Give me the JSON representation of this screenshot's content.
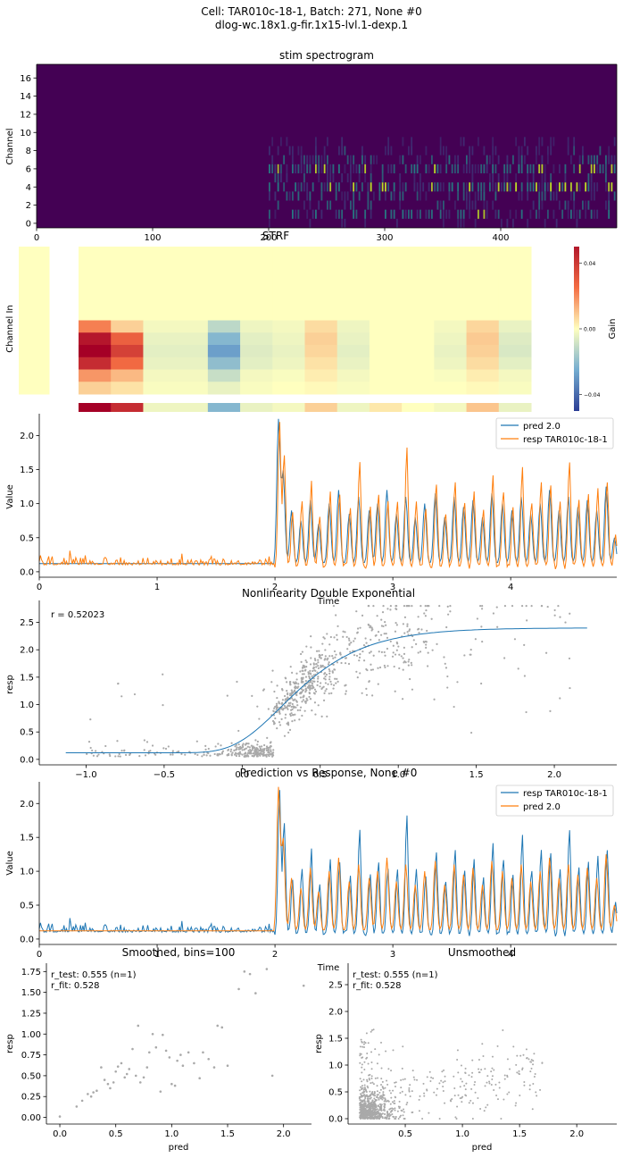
{
  "figure": {
    "suptitle_line1": "Cell: TAR010c-18-1, Batch: 271, None #0",
    "suptitle_line2": "dlog-wc.18x1.g-fir.1x15-lvl.1-dexp.1"
  },
  "colors": {
    "blue": "#1f77b4",
    "orange": "#ff7f0e",
    "scatter_gray": "#a9a9a9",
    "viridis_dark": "#440154",
    "viridis_mid": "#21918c",
    "viridis_light": "#bddf26",
    "colorbar_pos": "#b2182b",
    "colorbar_neg": "#2c3e95"
  },
  "chart_data": [
    {
      "id": "stim",
      "type": "heatmap",
      "title": "stim spectrogram",
      "ylabel": "Channel",
      "xlabel": "",
      "xlim": [
        0,
        500
      ],
      "ylim": [
        -0.5,
        17.5
      ],
      "xticks": [
        0,
        100,
        200,
        300,
        400
      ],
      "yticks": [
        0,
        2,
        4,
        6,
        8,
        10,
        12,
        14,
        16
      ],
      "stim_onset": 200,
      "active_channels": [
        0,
        1,
        2,
        3,
        4,
        5,
        6,
        7,
        8,
        9
      ]
    },
    {
      "id": "strf",
      "type": "heatmap",
      "title": "STRF",
      "ylabel": "Channel In",
      "colorbar_label": "Gain",
      "colorbar_ticks": [
        0.04,
        0.0,
        -0.04
      ],
      "colorbar_tick_labels": [
        "0.04",
        "0.00",
        "−0.04"
      ],
      "vlim": [
        -0.05,
        0.05
      ],
      "main_rows": [
        [
          0,
          0,
          0.022,
          0.008,
          -0.002,
          -0.002,
          -0.012,
          -0.003,
          -0.002,
          0.006,
          -0.003,
          0,
          0,
          -0.002,
          0.007,
          -0.004
        ],
        [
          0,
          0,
          0.045,
          0.028,
          -0.004,
          -0.004,
          -0.022,
          -0.005,
          -0.003,
          0.008,
          -0.004,
          0,
          0,
          -0.003,
          0.009,
          -0.006
        ],
        [
          0,
          0,
          0.052,
          0.035,
          -0.005,
          -0.005,
          -0.028,
          -0.006,
          -0.004,
          0.007,
          -0.005,
          0,
          0,
          -0.004,
          0.008,
          -0.007
        ],
        [
          0,
          0,
          0.04,
          0.026,
          -0.004,
          -0.004,
          -0.02,
          -0.005,
          -0.003,
          0.005,
          -0.004,
          0,
          0,
          -0.003,
          0.006,
          -0.005
        ],
        [
          0,
          0,
          0.018,
          0.012,
          -0.002,
          -0.002,
          -0.01,
          -0.002,
          -0.001,
          0.003,
          -0.002,
          0,
          0,
          -0.001,
          0.003,
          -0.002
        ],
        [
          0,
          0,
          0.008,
          0.005,
          -0.001,
          -0.001,
          -0.004,
          -0.001,
          0,
          0.001,
          -0.001,
          0,
          0,
          0,
          0.001,
          -0.001
        ]
      ],
      "bottom_row": [
        0,
        0,
        0.05,
        0.04,
        -0.003,
        -0.003,
        -0.022,
        -0.004,
        -0.002,
        0.008,
        -0.003,
        0.004,
        0,
        -0.002,
        0.01,
        -0.004
      ]
    },
    {
      "id": "timeseries1",
      "type": "line",
      "xlabel": "Time",
      "ylabel": "Value",
      "xlim": [
        0,
        4.9
      ],
      "ylim": [
        -0.08,
        2.32
      ],
      "xticks": [
        0,
        1,
        2,
        3,
        4
      ],
      "yticks": [
        0.0,
        0.5,
        1.0,
        1.5,
        2.0
      ],
      "legend_position": "upper right",
      "legend": [
        "pred 2.0",
        "resp TAR010c-18-1"
      ],
      "series": [
        {
          "name": "pred 2.0",
          "color": "#1f77b4",
          "baseline": 0.12,
          "peak": 2.22,
          "onset": 2.0
        },
        {
          "name": "resp TAR010c-18-1",
          "color": "#ff7f0e",
          "baseline": 0.12,
          "peak": 2.15,
          "onset": 2.0
        }
      ],
      "events": [
        {
          "t": 2.03,
          "pred": 2.22,
          "resp": 2.15
        },
        {
          "t": 2.07,
          "pred": 1.45,
          "resp": 1.7
        },
        {
          "t": 2.14,
          "pred": 0.9,
          "resp": 0.85
        },
        {
          "t": 2.22,
          "pred": 0.75,
          "resp": 1.0
        },
        {
          "t": 2.3,
          "pred": 1.05,
          "resp": 1.28
        },
        {
          "t": 2.37,
          "pred": 0.7,
          "resp": 0.8
        },
        {
          "t": 2.46,
          "pred": 1.0,
          "resp": 1.15
        },
        {
          "t": 2.54,
          "pred": 1.2,
          "resp": 1.12
        },
        {
          "t": 2.63,
          "pred": 0.85,
          "resp": 0.9
        },
        {
          "t": 2.71,
          "pred": 1.1,
          "resp": 1.55
        },
        {
          "t": 2.8,
          "pred": 0.9,
          "resp": 0.95
        },
        {
          "t": 2.87,
          "pred": 1.0,
          "resp": 1.12
        },
        {
          "t": 2.95,
          "pred": 1.2,
          "resp": 1.02
        },
        {
          "t": 3.03,
          "pred": 0.85,
          "resp": 1.0
        },
        {
          "t": 3.11,
          "pred": 1.1,
          "resp": 1.8
        },
        {
          "t": 3.19,
          "pred": 0.8,
          "resp": 1.0
        },
        {
          "t": 3.27,
          "pred": 1.0,
          "resp": 0.95
        },
        {
          "t": 3.36,
          "pred": 1.15,
          "resp": 1.28
        },
        {
          "t": 3.44,
          "pred": 0.8,
          "resp": 0.85
        },
        {
          "t": 3.52,
          "pred": 1.1,
          "resp": 1.3
        },
        {
          "t": 3.6,
          "pred": 0.95,
          "resp": 1.0
        },
        {
          "t": 3.68,
          "pred": 1.05,
          "resp": 1.15
        },
        {
          "t": 3.76,
          "pred": 0.8,
          "resp": 0.9
        },
        {
          "t": 3.84,
          "pred": 1.15,
          "resp": 1.4
        },
        {
          "t": 3.93,
          "pred": 1.0,
          "resp": 1.2
        },
        {
          "t": 4.01,
          "pred": 0.9,
          "resp": 0.95
        },
        {
          "t": 4.09,
          "pred": 1.1,
          "resp": 1.5
        },
        {
          "t": 4.17,
          "pred": 0.85,
          "resp": 1.0
        },
        {
          "t": 4.25,
          "pred": 1.0,
          "resp": 1.3
        },
        {
          "t": 4.33,
          "pred": 1.2,
          "resp": 1.25
        },
        {
          "t": 4.41,
          "pred": 0.9,
          "resp": 1.0
        },
        {
          "t": 4.49,
          "pred": 1.1,
          "resp": 1.6
        },
        {
          "t": 4.57,
          "pred": 0.95,
          "resp": 1.05
        },
        {
          "t": 4.65,
          "pred": 1.05,
          "resp": 1.1
        },
        {
          "t": 4.73,
          "pred": 0.9,
          "resp": 1.2
        },
        {
          "t": 4.81,
          "pred": 1.25,
          "resp": 1.3
        },
        {
          "t": 4.88,
          "pred": 0.5,
          "resp": 0.5
        }
      ]
    },
    {
      "id": "nonlinearity",
      "type": "scatter",
      "title": "Nonlinearity Double Exponential",
      "ylabel": "resp",
      "xlabel": "",
      "annotation": "r = 0.52023",
      "xlim": [
        -1.3,
        2.4
      ],
      "ylim": [
        -0.1,
        2.9
      ],
      "xticks": [
        -1.0,
        -0.5,
        0.0,
        0.5,
        1.0,
        1.5,
        2.0
      ],
      "yticks": [
        0.0,
        0.5,
        1.0,
        1.5,
        2.0,
        2.5
      ],
      "curve": {
        "base": 0.12,
        "amplitude": 2.28,
        "kappa": 1.2,
        "shift": 0.25,
        "x": [
          -1.13,
          2.23
        ]
      },
      "scatter_color": "#a9a9a9",
      "line_color": "#1f77b4"
    },
    {
      "id": "timeseries2",
      "type": "line",
      "title": "Prediction vs Response, None #0",
      "xlabel": "Time",
      "ylabel": "Value",
      "xlim": [
        0,
        4.9
      ],
      "ylim": [
        -0.08,
        2.32
      ],
      "xticks": [
        0,
        1,
        2,
        3,
        4
      ],
      "yticks": [
        0.0,
        0.5,
        1.0,
        1.5,
        2.0
      ],
      "legend_position": "upper right",
      "legend": [
        "resp TAR010c-18-1",
        "pred 2.0"
      ],
      "series": [
        {
          "name": "resp TAR010c-18-1",
          "color": "#1f77b4"
        },
        {
          "name": "pred 2.0",
          "color": "#ff7f0e"
        }
      ]
    },
    {
      "id": "smoothed",
      "type": "scatter",
      "title": "Smoothed, bins=100",
      "xlabel": "pred",
      "ylabel": "resp",
      "xlim": [
        -0.12,
        2.25
      ],
      "ylim": [
        -0.08,
        1.85
      ],
      "xticks": [
        0.0,
        0.5,
        1.0,
        1.5,
        2.0
      ],
      "yticks": [
        0.0,
        0.25,
        0.5,
        0.75,
        1.0,
        1.25,
        1.5,
        1.75
      ],
      "annotation_line1": "r_test: 0.555 (n=1)",
      "annotation_line2": "r_fit: 0.528",
      "points": [
        [
          0.0,
          0.01
        ],
        [
          0.15,
          0.13
        ],
        [
          0.2,
          0.2
        ],
        [
          0.25,
          0.28
        ],
        [
          0.28,
          0.25
        ],
        [
          0.3,
          0.3
        ],
        [
          0.33,
          0.32
        ],
        [
          0.37,
          0.6
        ],
        [
          0.4,
          0.45
        ],
        [
          0.43,
          0.4
        ],
        [
          0.45,
          0.35
        ],
        [
          0.48,
          0.42
        ],
        [
          0.5,
          0.55
        ],
        [
          0.52,
          0.61
        ],
        [
          0.55,
          0.65
        ],
        [
          0.58,
          0.48
        ],
        [
          0.6,
          0.52
        ],
        [
          0.62,
          0.58
        ],
        [
          0.65,
          0.82
        ],
        [
          0.68,
          0.5
        ],
        [
          0.7,
          1.1
        ],
        [
          0.72,
          0.42
        ],
        [
          0.75,
          0.48
        ],
        [
          0.78,
          0.6
        ],
        [
          0.8,
          0.78
        ],
        [
          0.83,
          1.0
        ],
        [
          0.86,
          0.84
        ],
        [
          0.9,
          0.31
        ],
        [
          0.92,
          0.99
        ],
        [
          0.95,
          0.8
        ],
        [
          0.98,
          0.72
        ],
        [
          1.0,
          0.4
        ],
        [
          1.03,
          0.38
        ],
        [
          1.05,
          0.68
        ],
        [
          1.08,
          0.75
        ],
        [
          1.1,
          0.62
        ],
        [
          1.15,
          0.78
        ],
        [
          1.2,
          0.65
        ],
        [
          1.25,
          0.47
        ],
        [
          1.28,
          0.78
        ],
        [
          1.33,
          0.7
        ],
        [
          1.38,
          0.6
        ],
        [
          1.41,
          1.1
        ],
        [
          1.45,
          1.08
        ],
        [
          1.5,
          0.62
        ],
        [
          1.6,
          1.54
        ],
        [
          1.65,
          1.75
        ],
        [
          1.7,
          1.72
        ],
        [
          1.75,
          1.49
        ],
        [
          1.85,
          1.78
        ],
        [
          1.9,
          0.5
        ],
        [
          2.18,
          1.58
        ]
      ]
    },
    {
      "id": "unsmoothed",
      "type": "scatter",
      "title": "Unsmoothed",
      "xlabel": "pred",
      "ylabel": "resp",
      "xlim": [
        0.0,
        2.35
      ],
      "ylim": [
        -0.1,
        2.9
      ],
      "xticks": [
        0.5,
        1.0,
        1.5,
        2.0
      ],
      "yticks": [
        0.0,
        0.5,
        1.0,
        1.5,
        2.0,
        2.5
      ],
      "annotation_line1": "r_test: 0.555 (n=1)",
      "annotation_line2": "r_fit: 0.528"
    }
  ]
}
